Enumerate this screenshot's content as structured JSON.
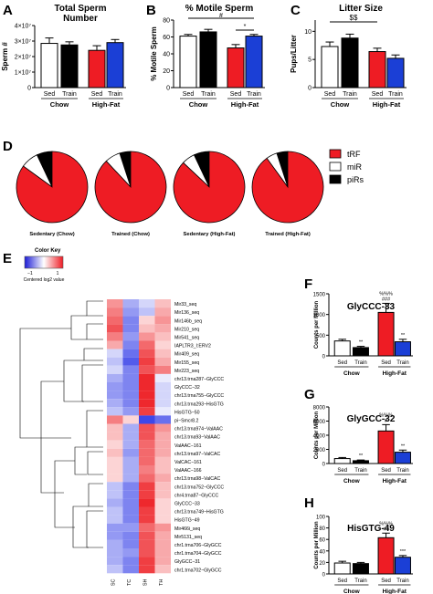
{
  "colors": {
    "white": "#ffffff",
    "black": "#000000",
    "red": "#ee1c24",
    "blue": "#1b3fd6"
  },
  "chart_data": [
    {
      "panel": "A",
      "type": "bar",
      "title": "Total Sperm Number",
      "title_lines": [
        "Total Sperm",
        "Number"
      ],
      "ylabel": "Sperm #",
      "ylim": [
        0,
        40000000
      ],
      "yticks": [
        {
          "v": 0,
          "t": "0"
        },
        {
          "v": 10000000,
          "t": "1×10⁷"
        },
        {
          "v": 20000000,
          "t": "2×10⁷"
        },
        {
          "v": 30000000,
          "t": "3×10⁷"
        },
        {
          "v": 40000000,
          "t": "4×10⁷"
        }
      ],
      "categories": [
        "Sed",
        "Train",
        "Sed",
        "Train"
      ],
      "groups": [
        "Chow",
        "High-Fat"
      ],
      "values": [
        28500000,
        27500000,
        24000000,
        29000000
      ],
      "errors": [
        3500000,
        2000000,
        3000000,
        2000000
      ],
      "bar_colors": [
        "#ffffff",
        "#000000",
        "#ee1c24",
        "#1b3fd6"
      ],
      "annotations": []
    },
    {
      "panel": "B",
      "type": "bar",
      "title": "% Motile Sperm",
      "title_lines": [
        "% Motile Sperm"
      ],
      "ylabel": "% Motile Sperm",
      "ylim": [
        0,
        80
      ],
      "yticks": [
        {
          "v": 0,
          "t": "0"
        },
        {
          "v": 20,
          "t": "20"
        },
        {
          "v": 40,
          "t": "40"
        },
        {
          "v": 60,
          "t": "60"
        },
        {
          "v": 80,
          "t": "80"
        }
      ],
      "categories": [
        "Sed",
        "Train",
        "Sed",
        "Train"
      ],
      "groups": [
        "Chow",
        "High-Fat"
      ],
      "values": [
        61,
        66,
        47,
        61
      ],
      "errors": [
        2,
        3,
        4,
        2
      ],
      "bar_colors": [
        "#ffffff",
        "#000000",
        "#ee1c24",
        "#1b3fd6"
      ],
      "annotations": [
        "#",
        "*"
      ]
    },
    {
      "panel": "C",
      "type": "bar",
      "title": "Litter Size",
      "title_lines": [
        "Litter Size"
      ],
      "ylabel": "Pups/Litter",
      "ylim": [
        0,
        12
      ],
      "yticks": [
        {
          "v": 0,
          "t": "0"
        },
        {
          "v": 5,
          "t": "5"
        },
        {
          "v": 10,
          "t": "10"
        }
      ],
      "categories": [
        "Sed",
        "Train",
        "Sed",
        "Train"
      ],
      "groups": [
        "Chow",
        "High-Fat"
      ],
      "values": [
        7.3,
        8.8,
        6.4,
        5.2
      ],
      "errors": [
        0.8,
        0.7,
        0.6,
        0.6
      ],
      "bar_colors": [
        "#ffffff",
        "#000000",
        "#ee1c24",
        "#1b3fd6"
      ],
      "annotations": [
        "$$"
      ]
    },
    {
      "panel": "D",
      "type": "pie",
      "legend": [
        {
          "label": "tRF",
          "color": "#ee1c24"
        },
        {
          "label": "miR",
          "color": "#ffffff"
        },
        {
          "label": "piRs",
          "color": "#000000"
        }
      ],
      "pies": [
        {
          "label": "Sedentary (Chow)",
          "values": [
            85,
            8,
            7
          ]
        },
        {
          "label": "Trained (Chow)",
          "values": [
            88,
            7,
            5
          ]
        },
        {
          "label": "Sedentary (High-Fat)",
          "values": [
            87,
            6,
            7
          ]
        },
        {
          "label": "Trained (High-Fat)",
          "values": [
            90,
            5,
            5
          ]
        }
      ]
    },
    {
      "panel": "E",
      "type": "heatmap",
      "color_key_title": "Color Key",
      "color_key_ticks": [
        "−1",
        "1"
      ],
      "color_key_label": "Centered log2 value",
      "columns": [
        "SC",
        "TC",
        "SH",
        "TH"
      ],
      "rows": [
        "Mir33_seq",
        "Mir136_seq",
        "Mir146b_seq",
        "Mir210_seq",
        "Mir541_seq",
        "IAPLTR3_I:ERV2",
        "Mir409_seq",
        "Mir155_seq",
        "Mir223_seq",
        "chr13.trna287−GlyCCC",
        "GlyCCC−32",
        "chr13.trna755−GlyCCC",
        "chr13.trna293−HisGTG",
        "HisGTG−50",
        "pi−Smcr8.2",
        "chr13.trna974−ValAAC",
        "chr13.trna93−ValAAC",
        "ValAAC−161",
        "chr13.trna97−ValCAC",
        "ValCAC−161",
        "ValAAC−166",
        "chr13.trna98−ValCAC",
        "chr13.trna752−GlyCCC",
        "chr4.trna87−GlyCCC",
        "GlyCCC−33",
        "chr13.trna749−HisGTG",
        "HisGTG−49",
        "Mir466i_seq",
        "Mir5131_seq",
        "chr1.trna706−GlyGCC",
        "chr1.trna704−GlyGCC",
        "GlyGCC−31",
        "chr1.trna702−GlyGCC"
      ],
      "values": [
        [
          0.5,
          -0.4,
          -0.2,
          0.3
        ],
        [
          0.6,
          -0.5,
          -0.3,
          0.4
        ],
        [
          0.7,
          -0.6,
          0.2,
          0.5
        ],
        [
          0.8,
          -0.6,
          0.3,
          0.4
        ],
        [
          0.6,
          -0.5,
          0.5,
          0.3
        ],
        [
          0.4,
          -0.6,
          0.7,
          0.2
        ],
        [
          -0.2,
          -0.7,
          0.8,
          0.3
        ],
        [
          -0.3,
          -0.8,
          0.9,
          0.4
        ],
        [
          -0.2,
          -0.6,
          0.8,
          0.6
        ],
        [
          -0.4,
          -0.6,
          1.0,
          -0.1
        ],
        [
          -0.5,
          -0.6,
          1.0,
          -0.2
        ],
        [
          -0.5,
          -0.6,
          1.0,
          -0.2
        ],
        [
          -0.4,
          -0.6,
          1.0,
          -0.2
        ],
        [
          -0.3,
          -0.5,
          0.9,
          -0.1
        ],
        [
          0.6,
          0.2,
          -0.9,
          -0.7
        ],
        [
          0.3,
          -0.4,
          0.8,
          0.5
        ],
        [
          0.3,
          -0.4,
          0.8,
          0.4
        ],
        [
          0.2,
          -0.4,
          0.7,
          0.4
        ],
        [
          0.3,
          -0.5,
          0.7,
          0.4
        ],
        [
          0.2,
          -0.4,
          0.7,
          0.3
        ],
        [
          0.2,
          -0.4,
          0.6,
          0.3
        ],
        [
          0.2,
          -0.4,
          0.7,
          0.4
        ],
        [
          -0.3,
          -0.6,
          0.9,
          0.3
        ],
        [
          -0.3,
          -0.6,
          0.9,
          0.3
        ],
        [
          -0.4,
          -0.6,
          1.0,
          0.2
        ],
        [
          -0.3,
          -0.6,
          0.9,
          0.2
        ],
        [
          -0.3,
          -0.6,
          0.9,
          0.2
        ],
        [
          -0.5,
          -0.5,
          0.7,
          0.5
        ],
        [
          -0.5,
          -0.6,
          0.8,
          0.4
        ],
        [
          -0.4,
          -0.6,
          0.8,
          0.4
        ],
        [
          -0.4,
          -0.5,
          0.8,
          0.4
        ],
        [
          -0.4,
          -0.6,
          0.9,
          0.4
        ],
        [
          -0.3,
          -0.6,
          0.9,
          0.3
        ]
      ]
    },
    {
      "panel": "F",
      "type": "bar",
      "title": "GlyCCC-33",
      "ylabel": "Counts per Million",
      "ylim": [
        0,
        1500
      ],
      "yticks": [
        {
          "v": 0,
          "t": "0"
        },
        {
          "v": 500,
          "t": "500"
        },
        {
          "v": 1000,
          "t": "1000"
        },
        {
          "v": 1500,
          "t": "1500"
        }
      ],
      "categories": [
        "Sed",
        "Train",
        "Sed",
        "Train"
      ],
      "groups": [
        "Chow",
        "High-Fat"
      ],
      "values": [
        360,
        200,
        1050,
        340
      ],
      "errors": [
        40,
        30,
        220,
        60
      ],
      "bar_colors": [
        "#ffffff",
        "#000000",
        "#ee1c24",
        "#1b3fd6"
      ],
      "bar_annotations": [
        [],
        [
          "**"
        ],
        [
          "%%%",
          "###"
        ],
        [
          "**"
        ]
      ]
    },
    {
      "panel": "G",
      "type": "bar",
      "title": "GlyGCC-32",
      "ylabel": "Counts per Million",
      "ylim": [
        0,
        8000
      ],
      "yticks": [
        {
          "v": 0,
          "t": "0"
        },
        {
          "v": 2000,
          "t": "2000"
        },
        {
          "v": 4000,
          "t": "4000"
        },
        {
          "v": 6000,
          "t": "6000"
        },
        {
          "v": 8000,
          "t": "8000"
        }
      ],
      "categories": [
        "Sed",
        "Train",
        "Sed",
        "Train"
      ],
      "groups": [
        "Chow",
        "High-Fat"
      ],
      "values": [
        700,
        400,
        4600,
        1600
      ],
      "errors": [
        150,
        100,
        900,
        300
      ],
      "bar_colors": [
        "#ffffff",
        "#000000",
        "#ee1c24",
        "#1b3fd6"
      ],
      "bar_annotations": [
        [],
        [
          "**"
        ],
        [
          "%%%",
          "#"
        ],
        [
          "**"
        ]
      ]
    },
    {
      "panel": "H",
      "type": "bar",
      "title": "HisGTG-49",
      "ylabel": "Counts per Million",
      "ylim": [
        0,
        100
      ],
      "yticks": [
        {
          "v": 0,
          "t": "0"
        },
        {
          "v": 20,
          "t": "20"
        },
        {
          "v": 40,
          "t": "40"
        },
        {
          "v": 60,
          "t": "60"
        },
        {
          "v": 80,
          "t": "80"
        },
        {
          "v": 100,
          "t": "100"
        }
      ],
      "categories": [
        "Sed",
        "Train",
        "Sed",
        "Train"
      ],
      "groups": [
        "Chow",
        "High-Fat"
      ],
      "values": [
        19,
        18,
        63,
        29
      ],
      "errors": [
        3,
        2,
        8,
        3
      ],
      "bar_colors": [
        "#ffffff",
        "#000000",
        "#ee1c24",
        "#1b3fd6"
      ],
      "bar_annotations": [
        [],
        [],
        [
          "%%%",
          "##"
        ],
        [
          "***"
        ]
      ]
    }
  ]
}
